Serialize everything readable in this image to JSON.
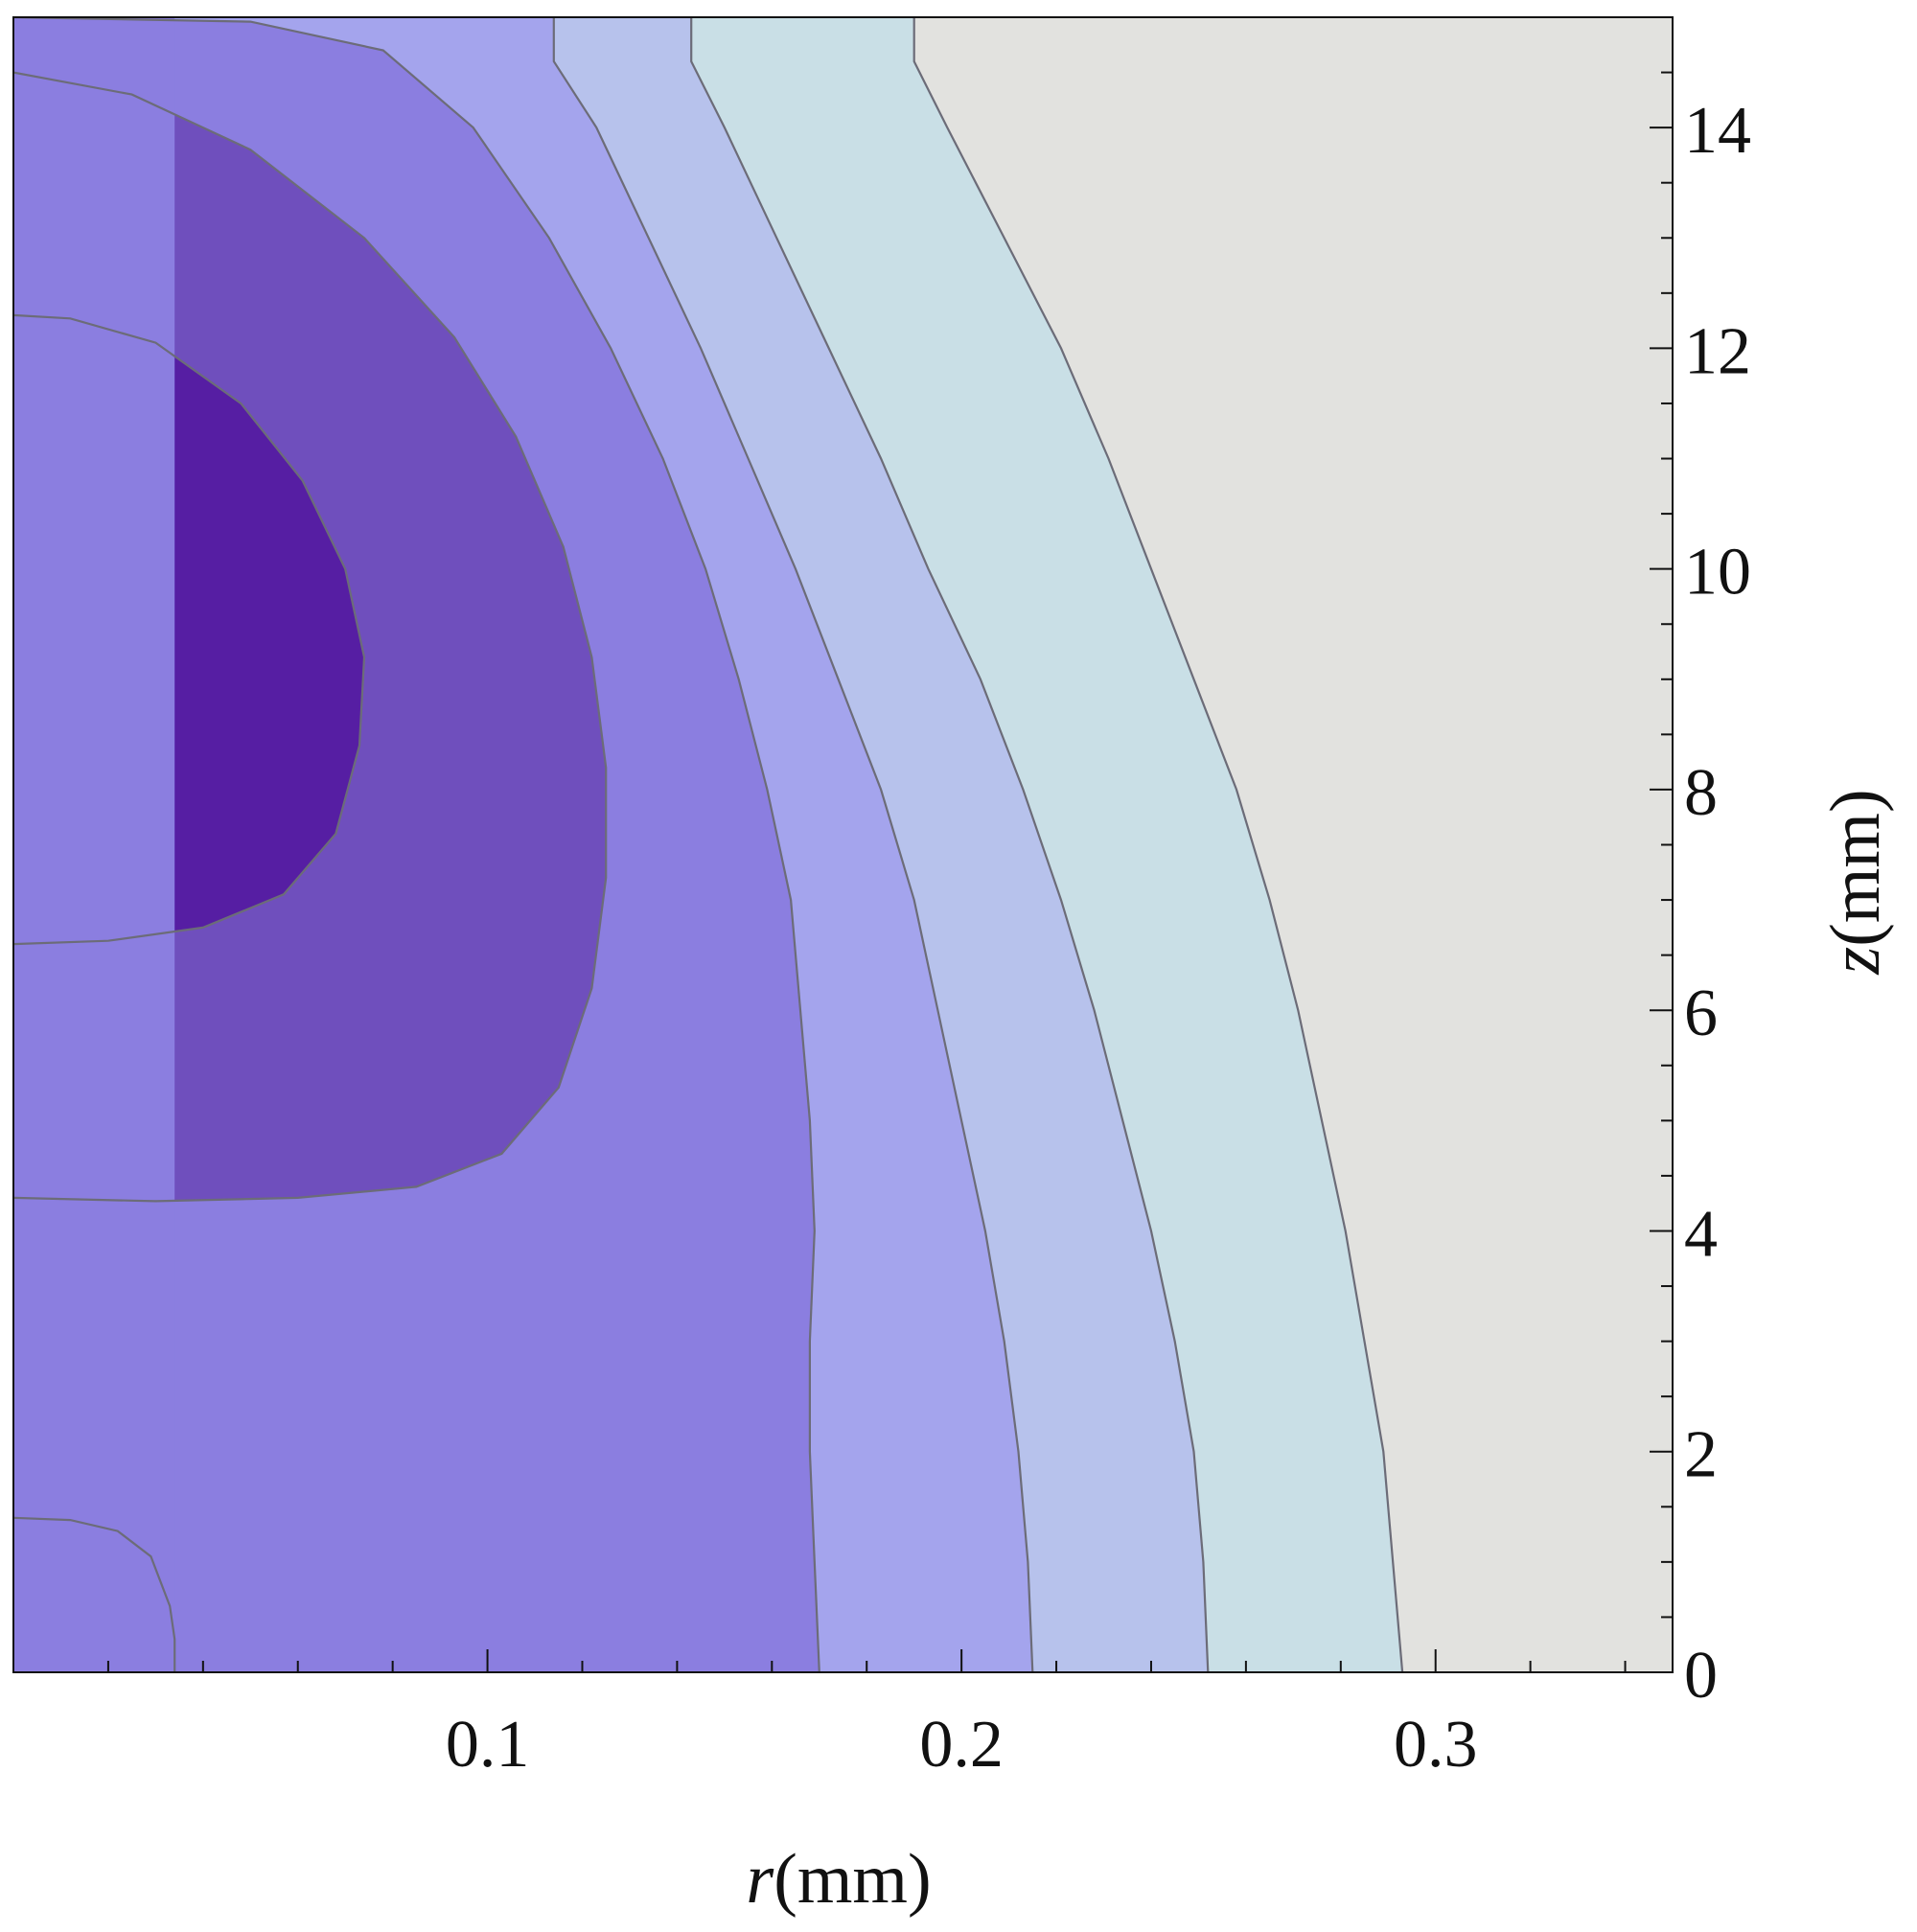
{
  "chart_data": {
    "type": "contour",
    "x_range": [
      0,
      0.35
    ],
    "y_range": [
      0,
      15
    ],
    "x_ticks": [
      0.1,
      0.2,
      0.3
    ],
    "x_tick_labels": [
      "0.1",
      "0.2",
      "0.3"
    ],
    "x_minor_step": 0.02,
    "y_ticks": [
      0,
      2,
      4,
      6,
      8,
      10,
      12,
      14
    ],
    "y_tick_labels": [
      "0",
      "2",
      "4",
      "6",
      "8",
      "10",
      "12",
      "14"
    ],
    "y_minor_step": 0.5,
    "xlabel": {
      "var": "r",
      "unit": "(mm)"
    },
    "ylabel": {
      "var": "z",
      "unit": "(mm)"
    },
    "y_axis_side": "right",
    "grid": false,
    "legend": "none",
    "level_colors": [
      "#e2e2df",
      "#c9dfe6",
      "#b7c2ec",
      "#a4a4ed",
      "#8b7ee0",
      "#6f4fbd",
      "#561ea3"
    ],
    "contour_lines": [
      {
        "level": 1,
        "points": [
          [
            0.293,
            0
          ],
          [
            0.291,
            1
          ],
          [
            0.289,
            2
          ],
          [
            0.285,
            3
          ],
          [
            0.281,
            4
          ],
          [
            0.276,
            5
          ],
          [
            0.271,
            6
          ],
          [
            0.265,
            7
          ],
          [
            0.258,
            8
          ],
          [
            0.249,
            9
          ],
          [
            0.24,
            10
          ],
          [
            0.231,
            11
          ],
          [
            0.221,
            12
          ],
          [
            0.209,
            13
          ],
          [
            0.197,
            14
          ],
          [
            0.19,
            14.6
          ],
          [
            0.19,
            15
          ]
        ]
      },
      {
        "level": 2,
        "points": [
          [
            0.252,
            0
          ],
          [
            0.251,
            1
          ],
          [
            0.249,
            2
          ],
          [
            0.245,
            3
          ],
          [
            0.24,
            4
          ],
          [
            0.234,
            5
          ],
          [
            0.228,
            6
          ],
          [
            0.221,
            7
          ],
          [
            0.213,
            8
          ],
          [
            0.204,
            9
          ],
          [
            0.193,
            10
          ],
          [
            0.183,
            11
          ],
          [
            0.172,
            12
          ],
          [
            0.161,
            13
          ],
          [
            0.15,
            14
          ],
          [
            0.143,
            14.6
          ],
          [
            0.143,
            15
          ]
        ]
      },
      {
        "level": 3,
        "points": [
          [
            0.215,
            0
          ],
          [
            0.214,
            1
          ],
          [
            0.212,
            2
          ],
          [
            0.209,
            3
          ],
          [
            0.205,
            4
          ],
          [
            0.2,
            5
          ],
          [
            0.195,
            6
          ],
          [
            0.19,
            7
          ],
          [
            0.183,
            8
          ],
          [
            0.174,
            9
          ],
          [
            0.165,
            10
          ],
          [
            0.155,
            11
          ],
          [
            0.145,
            12
          ],
          [
            0.134,
            13
          ],
          [
            0.123,
            14
          ],
          [
            0.114,
            14.6
          ],
          [
            0.114,
            15
          ]
        ]
      },
      {
        "level": 4,
        "points": [
          [
            0.17,
            0
          ],
          [
            0.169,
            1
          ],
          [
            0.168,
            2
          ],
          [
            0.168,
            3
          ],
          [
            0.169,
            4
          ],
          [
            0.168,
            5
          ],
          [
            0.166,
            6
          ],
          [
            0.164,
            7
          ],
          [
            0.159,
            8
          ],
          [
            0.153,
            9
          ],
          [
            0.146,
            10
          ],
          [
            0.137,
            11
          ],
          [
            0.126,
            12
          ],
          [
            0.113,
            13
          ],
          [
            0.097,
            14
          ],
          [
            0.078,
            14.7
          ],
          [
            0.05,
            14.96
          ],
          [
            0,
            15
          ]
        ]
      },
      {
        "level": 5,
        "points": [
          [
            0,
            4.3
          ],
          [
            0.03,
            4.27
          ],
          [
            0.06,
            4.3
          ],
          [
            0.085,
            4.4
          ],
          [
            0.103,
            4.7
          ],
          [
            0.115,
            5.3
          ],
          [
            0.122,
            6.2
          ],
          [
            0.125,
            7.2
          ],
          [
            0.125,
            8.2
          ],
          [
            0.122,
            9.2
          ],
          [
            0.116,
            10.2
          ],
          [
            0.106,
            11.2
          ],
          [
            0.093,
            12.1
          ],
          [
            0.074,
            13
          ],
          [
            0.05,
            13.8
          ],
          [
            0.025,
            14.3
          ],
          [
            0,
            14.5
          ]
        ]
      },
      {
        "level": 6,
        "points": [
          [
            0,
            6.6
          ],
          [
            0.02,
            6.63
          ],
          [
            0.04,
            6.75
          ],
          [
            0.057,
            7.05
          ],
          [
            0.068,
            7.6
          ],
          [
            0.073,
            8.4
          ],
          [
            0.074,
            9.2
          ],
          [
            0.07,
            10
          ],
          [
            0.061,
            10.8
          ],
          [
            0.048,
            11.5
          ],
          [
            0.03,
            12.05
          ],
          [
            0.012,
            12.27
          ],
          [
            0,
            12.3
          ]
        ]
      },
      {
        "level": 4,
        "points": [
          [
            0,
            1.4
          ],
          [
            0.012,
            1.38
          ],
          [
            0.022,
            1.28
          ],
          [
            0.029,
            1.05
          ],
          [
            0.033,
            0.6
          ],
          [
            0.034,
            0.3
          ],
          [
            0.034,
            0
          ]
        ]
      }
    ]
  }
}
